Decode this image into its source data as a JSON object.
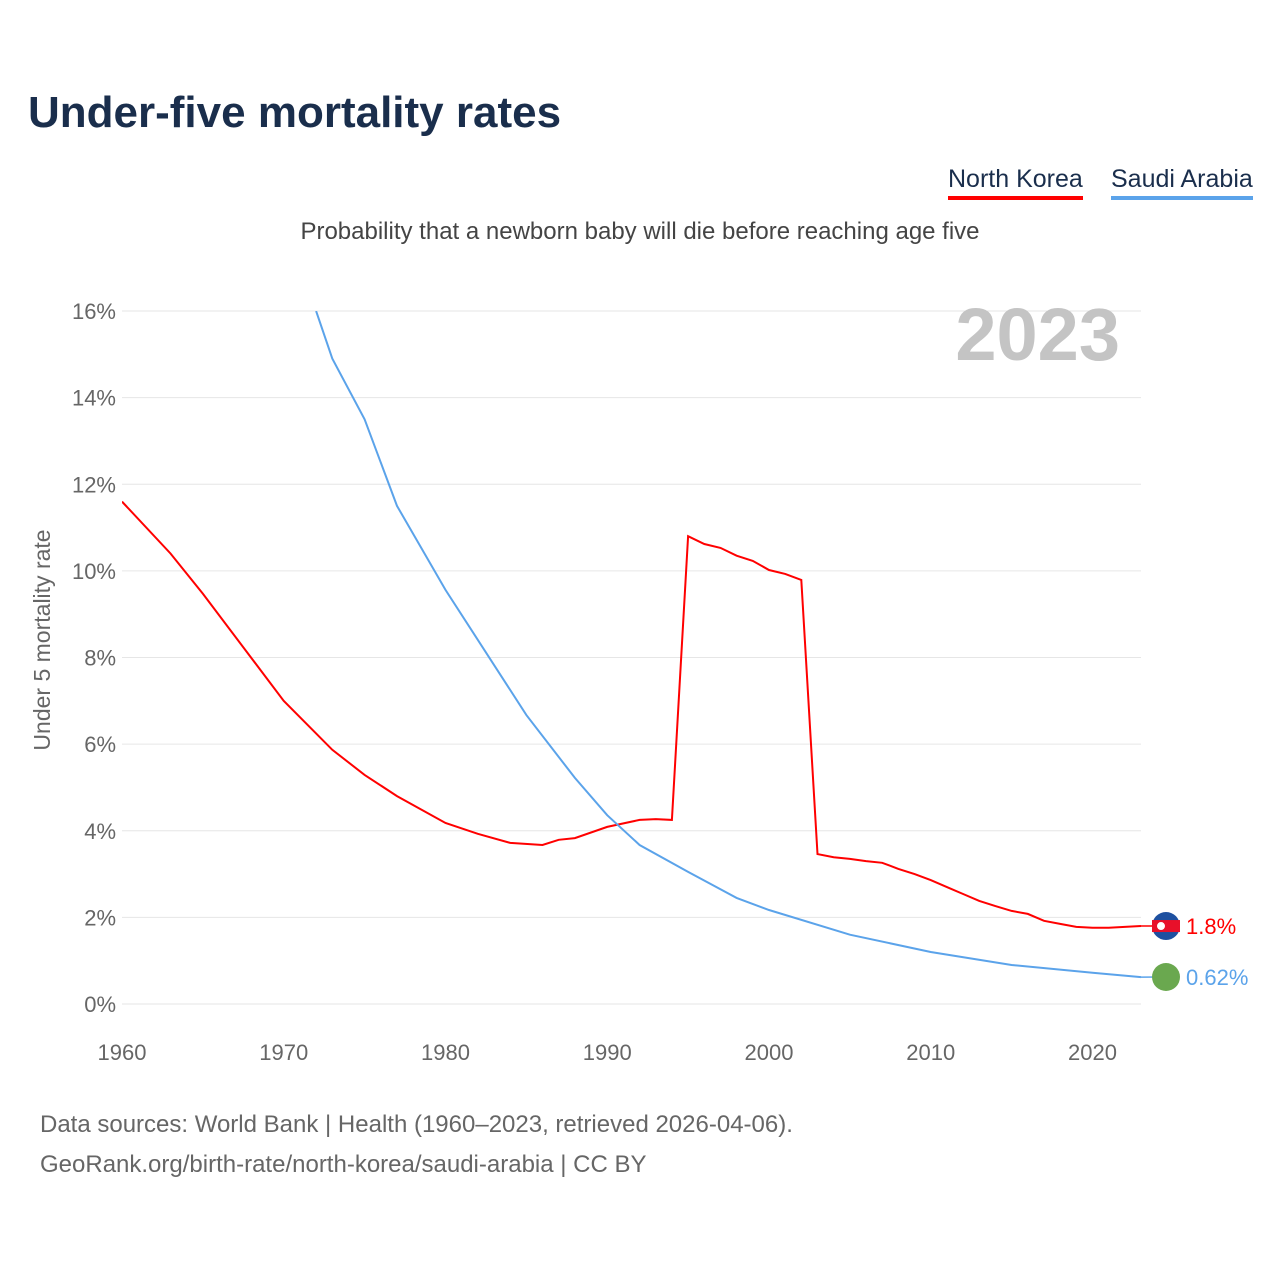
{
  "title": "Under-five mortality rates",
  "subtitle": "Probability that a newborn baby will die before reaching age five",
  "footer": {
    "line1": "Data sources: World Bank | Health (1960–2023, retrieved 2026-04-06).",
    "line2": "GeoRank.org/birth-rate/north-korea/saudi-arabia | CC BY"
  },
  "chart_data": {
    "type": "line",
    "title": "Under-five mortality rates",
    "ylabel": "Under 5 mortality rate",
    "year_label": "2023",
    "xlim": [
      1960,
      2023
    ],
    "ylim": [
      0,
      16
    ],
    "xticks": [
      1960,
      1970,
      1980,
      1990,
      2000,
      2010,
      2020
    ],
    "yticks": [
      "0%",
      "2%",
      "4%",
      "6%",
      "8%",
      "10%",
      "12%",
      "14%",
      "16%"
    ],
    "series": [
      {
        "name": "North Korea",
        "color": "#ff0000",
        "end_label": "1.8%",
        "x": [
          1960,
          1963,
          1965,
          1970,
          1973,
          1975,
          1977,
          1980,
          1982,
          1984,
          1986,
          1987,
          1988,
          1990,
          1992,
          1993,
          1994,
          1995,
          1996,
          1997,
          1998,
          1999,
          2000,
          2001,
          2002,
          2003,
          2004,
          2005,
          2006,
          2007,
          2008,
          2009,
          2010,
          2011,
          2012,
          2013,
          2014,
          2015,
          2016,
          2017,
          2018,
          2019,
          2020,
          2021,
          2022,
          2023
        ],
        "y": [
          11.6,
          10.4,
          9.47,
          7.0,
          5.87,
          5.29,
          4.8,
          4.18,
          3.93,
          3.72,
          3.67,
          3.79,
          3.83,
          4.09,
          4.25,
          4.27,
          4.25,
          10.8,
          10.62,
          10.53,
          10.35,
          10.23,
          10.02,
          9.93,
          9.79,
          3.46,
          3.39,
          3.35,
          3.3,
          3.26,
          3.12,
          3.0,
          2.86,
          2.7,
          2.54,
          2.38,
          2.26,
          2.15,
          2.08,
          1.92,
          1.85,
          1.78,
          1.76,
          1.76,
          1.78,
          1.8
        ]
      },
      {
        "name": "Saudi Arabia",
        "color": "#5ba3ea",
        "end_label": "0.62%",
        "x": [
          1972,
          1973,
          1975,
          1977,
          1980,
          1983,
          1985,
          1988,
          1990,
          1992,
          1995,
          1998,
          2000,
          2005,
          2010,
          2015,
          2020,
          2023
        ],
        "y": [
          16.0,
          14.9,
          13.5,
          11.5,
          9.56,
          7.83,
          6.67,
          5.22,
          4.36,
          3.67,
          3.05,
          2.45,
          2.17,
          1.6,
          1.2,
          0.9,
          0.72,
          0.62
        ]
      }
    ]
  }
}
